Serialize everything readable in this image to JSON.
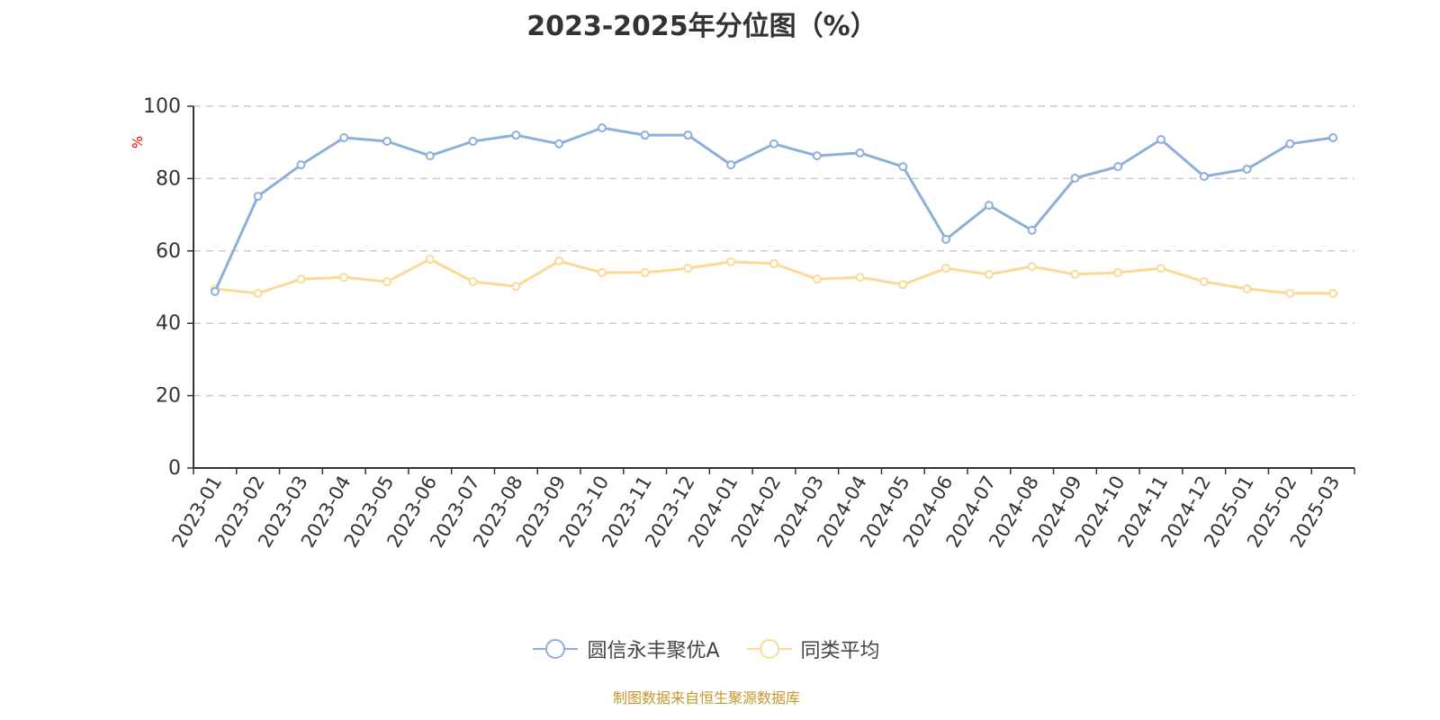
{
  "chart_data": {
    "type": "line",
    "title": "2023-2025年分位图（%）",
    "xlabel": "",
    "ylabel": "%",
    "ylim": [
      0,
      100
    ],
    "yticks": [
      0,
      20,
      40,
      60,
      80,
      100
    ],
    "grid": true,
    "legend_position": "bottom",
    "categories": [
      "2023-01",
      "2023-02",
      "2023-03",
      "2023-04",
      "2023-05",
      "2023-06",
      "2023-07",
      "2023-08",
      "2023-09",
      "2023-10",
      "2023-11",
      "2023-12",
      "2024-01",
      "2024-02",
      "2024-03",
      "2024-04",
      "2024-05",
      "2024-06",
      "2024-07",
      "2024-08",
      "2024-09",
      "2024-10",
      "2024-11",
      "2024-12",
      "2025-01",
      "2025-02",
      "2025-03"
    ],
    "series": [
      {
        "name": "圆信永丰聚优A",
        "color": "#8eaedc",
        "values": [
          48.8,
          75.1,
          83.8,
          91.3,
          90.3,
          86.3,
          90.3,
          92.0,
          89.6,
          94.0,
          92.0,
          92.0,
          83.8,
          89.6,
          86.3,
          87.1,
          83.3,
          63.2,
          72.6,
          65.7,
          80.1,
          83.3,
          90.8,
          80.6,
          82.6,
          89.6,
          91.3
        ]
      },
      {
        "name": "同类平均",
        "color": "#fdd996",
        "values": [
          49.5,
          48.3,
          52.2,
          52.7,
          51.5,
          57.7,
          51.5,
          50.2,
          57.2,
          54.0,
          54.0,
          55.2,
          57.0,
          56.5,
          52.2,
          52.7,
          50.7,
          55.2,
          53.5,
          55.7,
          53.5,
          54.0,
          55.2,
          51.5,
          49.5,
          48.3,
          48.3
        ]
      }
    ]
  },
  "footer": "制图数据来自恒生聚源数据库"
}
